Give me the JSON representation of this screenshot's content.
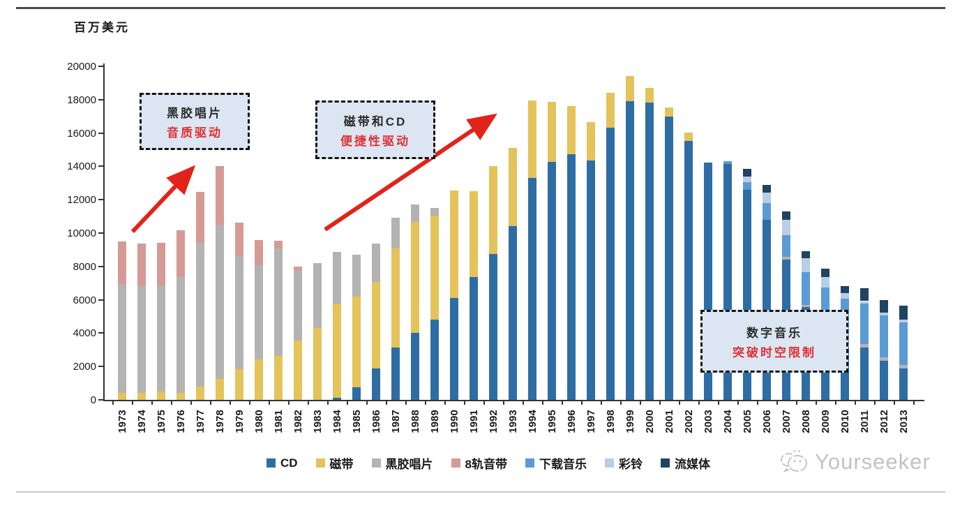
{
  "chart_data": {
    "type": "bar",
    "stacked": true,
    "title": "",
    "unit_label": "百万美元",
    "ylabel": "百万美元",
    "ylim": [
      0,
      20000
    ],
    "ytick_step": 2000,
    "grid": false,
    "legend_position": "bottom",
    "categories": [
      "1973",
      "1974",
      "1975",
      "1976",
      "1977",
      "1978",
      "1979",
      "1980",
      "1981",
      "1982",
      "1983",
      "1984",
      "1985",
      "1986",
      "1987",
      "1988",
      "1989",
      "1990",
      "1991",
      "1992",
      "1993",
      "1994",
      "1995",
      "1996",
      "1997",
      "1998",
      "1999",
      "2000",
      "2001",
      "2002",
      "2003",
      "2004",
      "2005",
      "2006",
      "2007",
      "2008",
      "2009",
      "2010",
      "2011",
      "2012",
      "2013"
    ],
    "series": [
      {
        "name": "CD",
        "color": "#2e6da4",
        "values": [
          0,
          0,
          0,
          0,
          0,
          0,
          0,
          0,
          0,
          0,
          0,
          130,
          750,
          1870,
          3130,
          4000,
          4800,
          6120,
          7370,
          8750,
          10420,
          13300,
          14280,
          14740,
          14350,
          16330,
          17910,
          17810,
          16980,
          15530,
          14210,
          14160,
          12610,
          10800,
          8420,
          5570,
          4500,
          3200,
          3130,
          2360,
          1870
        ]
      },
      {
        "name": "磁带",
        "color": "#e3c35a",
        "values": [
          400,
          420,
          500,
          420,
          800,
          1240,
          1830,
          2430,
          2650,
          3540,
          4310,
          5620,
          5440,
          5190,
          5950,
          6680,
          6230,
          6440,
          5130,
          5280,
          4700,
          4650,
          3590,
          2890,
          2300,
          2090,
          1500,
          890,
          550,
          490,
          0,
          0,
          0,
          0,
          0,
          0,
          0,
          0,
          0,
          0,
          0
        ]
      },
      {
        "name": "黑胶唱片",
        "color": "#b3b3b3",
        "values": [
          6550,
          6400,
          6350,
          6990,
          8600,
          9270,
          6800,
          5650,
          6440,
          4190,
          3900,
          3140,
          2510,
          2300,
          1850,
          1050,
          460,
          0,
          0,
          0,
          0,
          0,
          0,
          0,
          0,
          0,
          0,
          0,
          0,
          0,
          0,
          0,
          0,
          0,
          140,
          140,
          150,
          160,
          210,
          210,
          210
        ]
      },
      {
        "name": "8轨音带",
        "color": "#d59a95",
        "values": [
          2550,
          2540,
          2550,
          2760,
          3070,
          3500,
          1990,
          1490,
          460,
          280,
          0,
          0,
          0,
          0,
          0,
          0,
          0,
          0,
          0,
          0,
          0,
          0,
          0,
          0,
          0,
          0,
          0,
          0,
          0,
          0,
          0,
          0,
          0,
          0,
          0,
          0,
          0,
          0,
          0,
          0,
          0
        ]
      },
      {
        "name": "下载音乐",
        "color": "#5b9bd5",
        "values": [
          0,
          0,
          0,
          0,
          0,
          0,
          0,
          0,
          0,
          0,
          0,
          0,
          0,
          0,
          0,
          0,
          0,
          0,
          0,
          0,
          0,
          0,
          0,
          0,
          0,
          0,
          0,
          0,
          0,
          0,
          0,
          140,
          450,
          980,
          1320,
          1950,
          2100,
          2690,
          2440,
          2510,
          2580
        ]
      },
      {
        "name": "彩铃",
        "color": "#b9cde5",
        "values": [
          0,
          0,
          0,
          0,
          0,
          0,
          0,
          0,
          0,
          0,
          0,
          0,
          0,
          0,
          0,
          0,
          0,
          0,
          0,
          0,
          0,
          0,
          0,
          0,
          0,
          0,
          0,
          0,
          0,
          0,
          0,
          0,
          320,
          630,
          910,
          840,
          630,
          350,
          140,
          140,
          140
        ]
      },
      {
        "name": "流媒体",
        "color": "#1f4361",
        "values": [
          0,
          0,
          0,
          0,
          0,
          0,
          0,
          0,
          0,
          0,
          0,
          0,
          0,
          0,
          0,
          0,
          0,
          0,
          0,
          0,
          0,
          0,
          0,
          0,
          0,
          0,
          0,
          0,
          0,
          0,
          0,
          0,
          490,
          490,
          490,
          420,
          490,
          420,
          770,
          770,
          840
        ]
      }
    ]
  },
  "annotations": [
    {
      "title": "黑胶唱片",
      "subtitle": "音质驱动"
    },
    {
      "title": "磁带和CD",
      "subtitle": "便捷性驱动"
    },
    {
      "title": "数字音乐",
      "subtitle": "突破时空限制"
    }
  ],
  "watermark": {
    "text": "Yourseeker"
  },
  "colors": {
    "arrow_red": "#e2231a",
    "annotation_bg": "#dce6f2",
    "annotation_red_text": "#e03135"
  }
}
